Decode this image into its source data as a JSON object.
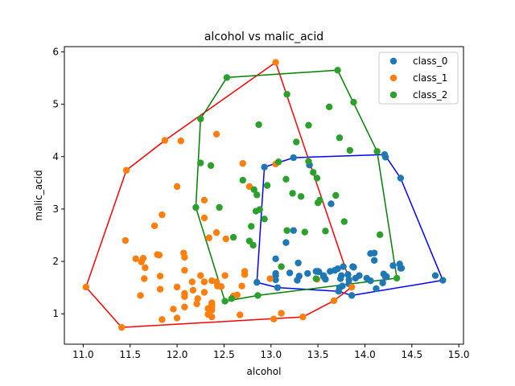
{
  "chart_data": {
    "type": "scatter",
    "title": "alcohol vs malic_acid",
    "xlabel": "alcohol",
    "ylabel": "malic_acid",
    "xlim": [
      10.8,
      15.05
    ],
    "ylim": [
      0.42,
      6.1
    ],
    "xticks": [
      "11.0",
      "11.5",
      "12.0",
      "12.5",
      "13.0",
      "13.5",
      "14.0",
      "14.5",
      "15.0"
    ],
    "yticks": [
      "1",
      "2",
      "3",
      "4",
      "5",
      "6"
    ],
    "grid": false,
    "legend_position": "top-right",
    "series": [
      {
        "name": "class_0",
        "color": "#1f77b4",
        "hull_color": "#0000ff",
        "points": [
          [
            14.23,
            1.71
          ],
          [
            13.2,
            1.78
          ],
          [
            13.16,
            2.36
          ],
          [
            14.37,
            1.95
          ],
          [
            13.24,
            2.59
          ],
          [
            14.2,
            1.76
          ],
          [
            14.39,
            1.87
          ],
          [
            14.06,
            2.15
          ],
          [
            14.83,
            1.64
          ],
          [
            13.86,
            1.35
          ],
          [
            14.1,
            2.16
          ],
          [
            14.12,
            1.48
          ],
          [
            13.75,
            1.73
          ],
          [
            14.75,
            1.73
          ],
          [
            14.38,
            1.87
          ],
          [
            13.63,
            1.81
          ],
          [
            14.3,
            1.92
          ],
          [
            13.83,
            1.57
          ],
          [
            14.19,
            1.59
          ],
          [
            13.64,
            3.1
          ],
          [
            14.06,
            1.63
          ],
          [
            12.93,
            3.8
          ],
          [
            13.71,
            1.86
          ],
          [
            12.85,
            1.6
          ],
          [
            13.5,
            1.81
          ],
          [
            13.05,
            2.05
          ],
          [
            13.39,
            1.77
          ],
          [
            13.3,
            1.72
          ],
          [
            13.87,
            1.9
          ],
          [
            14.02,
            1.68
          ],
          [
            13.73,
            1.5
          ],
          [
            13.58,
            1.66
          ],
          [
            13.68,
            1.83
          ],
          [
            13.76,
            1.53
          ],
          [
            13.51,
            1.8
          ],
          [
            13.48,
            1.81
          ],
          [
            13.28,
            1.64
          ],
          [
            13.05,
            1.65
          ],
          [
            13.07,
            1.5
          ],
          [
            14.22,
            3.99
          ],
          [
            13.56,
            1.71
          ],
          [
            13.41,
            3.84
          ],
          [
            13.88,
            1.89
          ],
          [
            13.24,
            3.98
          ],
          [
            13.05,
            1.77
          ],
          [
            14.21,
            4.04
          ],
          [
            14.38,
            3.59
          ],
          [
            13.9,
            1.68
          ],
          [
            14.1,
            2.02
          ],
          [
            13.94,
            1.73
          ],
          [
            13.05,
            1.73
          ],
          [
            13.83,
            1.65
          ],
          [
            13.82,
            1.75
          ],
          [
            13.77,
            1.9
          ],
          [
            13.74,
            1.67
          ],
          [
            13.56,
            1.73
          ],
          [
            14.22,
            1.7
          ],
          [
            13.29,
            1.97
          ],
          [
            13.72,
            1.43
          ]
        ],
        "hull": [
          [
            14.83,
            1.64
          ],
          [
            14.38,
            3.59
          ],
          [
            14.21,
            4.04
          ],
          [
            13.24,
            3.98
          ],
          [
            12.93,
            3.8
          ],
          [
            12.85,
            1.6
          ],
          [
            13.07,
            1.5
          ],
          [
            13.72,
            1.43
          ],
          [
            13.86,
            1.35
          ]
        ]
      },
      {
        "name": "class_1",
        "color": "#ff7f0e",
        "hull_color": "#ff0000",
        "points": [
          [
            12.37,
            0.94
          ],
          [
            12.33,
            1.1
          ],
          [
            12.64,
            1.36
          ],
          [
            13.67,
            1.25
          ],
          [
            12.37,
            1.13
          ],
          [
            12.17,
            1.45
          ],
          [
            12.37,
            1.21
          ],
          [
            13.11,
            1.01
          ],
          [
            12.37,
            1.17
          ],
          [
            13.34,
            0.94
          ],
          [
            12.21,
            1.19
          ],
          [
            12.29,
            1.61
          ],
          [
            13.86,
            1.51
          ],
          [
            13.49,
            1.66
          ],
          [
            12.99,
            1.67
          ],
          [
            11.96,
            1.09
          ],
          [
            11.66,
            1.88
          ],
          [
            13.03,
            0.9
          ],
          [
            11.84,
            2.89
          ],
          [
            12.33,
            0.99
          ],
          [
            12.7,
            3.87
          ],
          [
            12.0,
            0.92
          ],
          [
            12.72,
            1.81
          ],
          [
            12.08,
            1.13
          ],
          [
            13.05,
            3.86
          ],
          [
            11.84,
            0.89
          ],
          [
            12.67,
            0.98
          ],
          [
            12.16,
            1.61
          ],
          [
            11.65,
            1.67
          ],
          [
            11.64,
            2.06
          ],
          [
            12.08,
            1.33
          ],
          [
            12.08,
            1.83
          ],
          [
            12.0,
            1.51
          ],
          [
            12.69,
            1.53
          ],
          [
            12.29,
            2.83
          ],
          [
            11.62,
            1.99
          ],
          [
            12.47,
            1.52
          ],
          [
            11.81,
            2.12
          ],
          [
            12.29,
            1.41
          ],
          [
            12.37,
            1.07
          ],
          [
            12.29,
            3.17
          ],
          [
            12.08,
            2.08
          ],
          [
            12.6,
            1.34
          ],
          [
            12.34,
            2.45
          ],
          [
            11.82,
            1.72
          ],
          [
            12.51,
            1.73
          ],
          [
            12.42,
            2.55
          ],
          [
            12.25,
            1.73
          ],
          [
            12.72,
            1.75
          ],
          [
            12.22,
            1.29
          ],
          [
            11.61,
            1.35
          ],
          [
            11.46,
            3.74
          ],
          [
            12.52,
            2.43
          ],
          [
            11.76,
            2.68
          ],
          [
            11.41,
            0.74
          ],
          [
            12.08,
            1.39
          ],
          [
            11.03,
            1.51
          ],
          [
            11.82,
            1.47
          ],
          [
            12.42,
            1.61
          ],
          [
            12.77,
            3.43
          ],
          [
            12.0,
            3.43
          ],
          [
            11.45,
            2.4
          ],
          [
            11.56,
            2.05
          ],
          [
            12.42,
            4.43
          ],
          [
            13.05,
            5.8
          ],
          [
            11.87,
            4.31
          ],
          [
            12.07,
            2.16
          ],
          [
            12.43,
            1.53
          ],
          [
            11.79,
            2.13
          ],
          [
            12.37,
            1.63
          ],
          [
            12.04,
            4.3
          ]
        ],
        "hull": [
          [
            11.03,
            1.51
          ],
          [
            11.41,
            0.74
          ],
          [
            13.34,
            0.94
          ],
          [
            13.67,
            1.25
          ],
          [
            13.86,
            1.51
          ],
          [
            13.05,
            5.8
          ],
          [
            11.87,
            4.31
          ],
          [
            11.46,
            3.74
          ]
        ]
      },
      {
        "name": "class_2",
        "color": "#2ca02c",
        "hull_color": "#008000",
        "points": [
          [
            12.86,
            1.35
          ],
          [
            12.88,
            2.99
          ],
          [
            12.81,
            2.31
          ],
          [
            12.7,
            3.55
          ],
          [
            12.51,
            1.24
          ],
          [
            12.6,
            2.46
          ],
          [
            12.25,
            4.72
          ],
          [
            12.53,
            5.51
          ],
          [
            13.49,
            3.59
          ],
          [
            12.84,
            2.96
          ],
          [
            12.93,
            2.81
          ],
          [
            13.36,
            2.56
          ],
          [
            13.52,
            3.17
          ],
          [
            13.62,
            4.95
          ],
          [
            12.25,
            3.88
          ],
          [
            13.16,
            3.57
          ],
          [
            13.88,
            5.04
          ],
          [
            12.87,
            4.61
          ],
          [
            13.32,
            3.24
          ],
          [
            13.08,
            3.9
          ],
          [
            13.5,
            3.12
          ],
          [
            12.79,
            2.67
          ],
          [
            13.11,
            1.9
          ],
          [
            13.23,
            3.3
          ],
          [
            12.58,
            1.29
          ],
          [
            13.17,
            5.19
          ],
          [
            13.84,
            4.12
          ],
          [
            12.45,
            3.03
          ],
          [
            14.34,
            1.68
          ],
          [
            13.48,
            1.67
          ],
          [
            12.36,
            3.83
          ],
          [
            13.69,
            3.26
          ],
          [
            12.85,
            3.27
          ],
          [
            12.96,
            3.45
          ],
          [
            13.78,
            2.76
          ],
          [
            13.73,
            4.36
          ],
          [
            13.45,
            3.7
          ],
          [
            12.82,
            3.37
          ],
          [
            13.58,
            2.58
          ],
          [
            13.4,
            4.6
          ],
          [
            12.2,
            3.03
          ],
          [
            12.77,
            2.39
          ],
          [
            14.16,
            2.51
          ],
          [
            13.71,
            5.65
          ],
          [
            13.4,
            3.91
          ],
          [
            13.27,
            4.28
          ],
          [
            13.17,
            2.59
          ],
          [
            14.13,
            4.1
          ]
        ],
        "hull": [
          [
            12.51,
            1.24
          ],
          [
            12.86,
            1.35
          ],
          [
            14.34,
            1.68
          ],
          [
            14.13,
            4.1
          ],
          [
            13.71,
            5.65
          ],
          [
            12.53,
            5.51
          ],
          [
            12.25,
            4.72
          ],
          [
            12.2,
            3.03
          ]
        ]
      }
    ]
  }
}
